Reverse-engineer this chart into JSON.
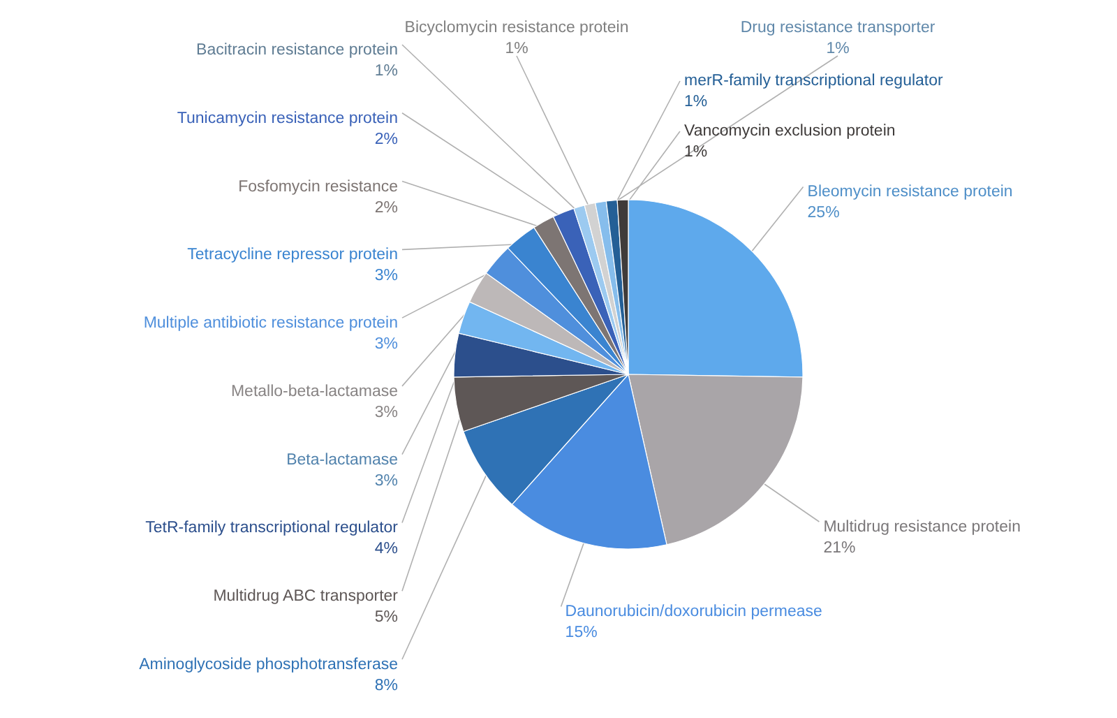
{
  "chart_data": {
    "type": "pie",
    "categories": [
      "Bleomycin resistance protein",
      "Multidrug resistance protein",
      "Daunorubicin/doxorubicin permease",
      "Aminoglycoside phosphotransferase",
      "Multidrug ABC transporter",
      "TetR-family transcriptional regulator",
      "Beta-lactamase",
      "Metallo-beta-lactamase",
      "Multiple antibiotic resistance protein",
      "Tetracycline repressor protein",
      "Fosfomycin resistance",
      "Tunicamycin resistance protein",
      "Bacitracin resistance protein",
      "Bicyclomycin resistance protein",
      "Drug resistance transporter",
      "merR-family transcriptional regulator",
      "Vancomycin exclusion protein"
    ],
    "values": [
      25,
      21,
      15,
      8,
      5,
      4,
      3,
      3,
      3,
      3,
      2,
      2,
      1,
      1,
      1,
      1,
      1
    ],
    "value_labels": [
      "25%",
      "21%",
      "15%",
      "8%",
      "5%",
      "4%",
      "3%",
      "3%",
      "3%",
      "3%",
      "2%",
      "2%",
      "1%",
      "1%",
      "1%",
      "1%",
      "1%"
    ],
    "colors": [
      "#5ea9ec",
      "#a9a5a8",
      "#4a8ce0",
      "#2f72b5",
      "#5e5756",
      "#2c4f8c",
      "#72b6f0",
      "#bdb8b8",
      "#4f8fdc",
      "#3a84d0",
      "#7d7573",
      "#3a62b8",
      "#9ccaf0",
      "#d2d2d2",
      "#86bdec",
      "#245f96",
      "#3f3b3a"
    ]
  }
}
